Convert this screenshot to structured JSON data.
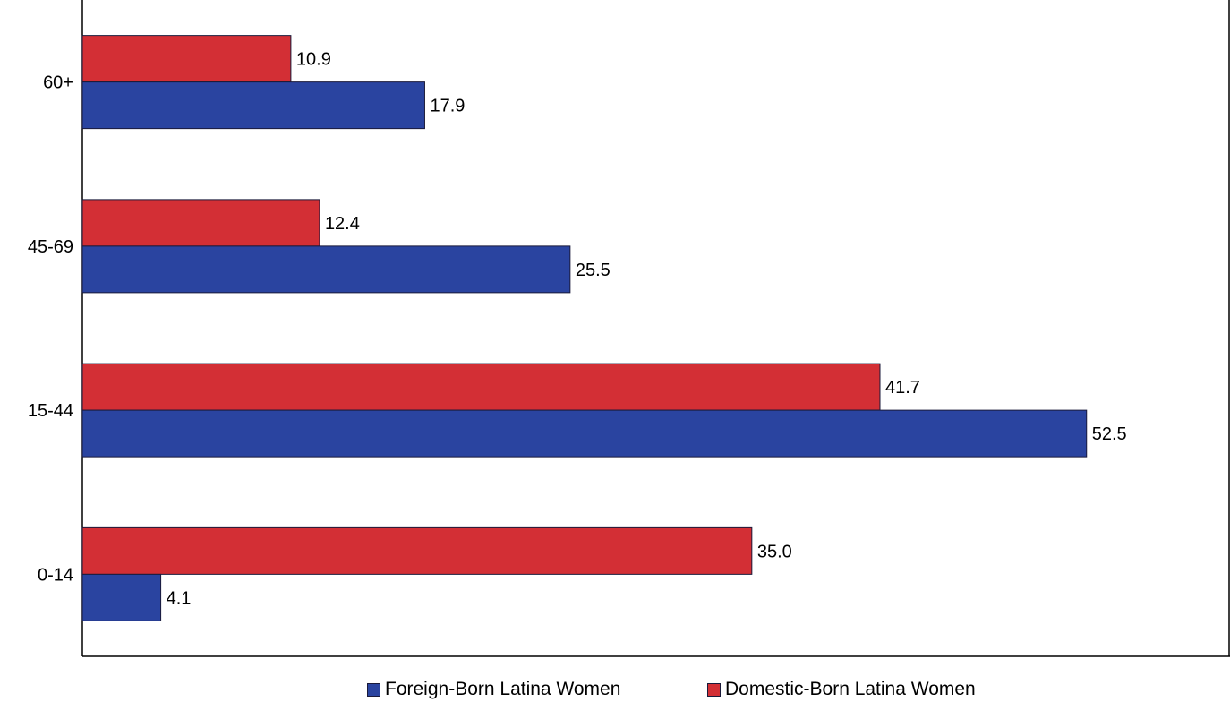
{
  "chart_data": {
    "type": "bar",
    "orientation": "horizontal",
    "categories": [
      "60+",
      "45-69",
      "15-44",
      "0-14"
    ],
    "series": [
      {
        "name": "Domestic-Born Latina Women",
        "color": "#d32f35",
        "values": [
          10.9,
          12.4,
          41.7,
          35.0
        ],
        "labels": [
          "10.9",
          "12.4",
          "41.7",
          "35.0"
        ]
      },
      {
        "name": "Foreign-Born Latina Women",
        "color": "#2a44a0",
        "values": [
          17.9,
          25.5,
          52.5,
          4.1
        ],
        "labels": [
          "17.9",
          "25.5",
          "52.5",
          "4.1"
        ]
      }
    ],
    "xlim": [
      0,
      60
    ],
    "grid": false,
    "legend_position": "bottom"
  },
  "legend": {
    "items": [
      {
        "label": "Foreign-Born Latina Women",
        "color": "#2a44a0"
      },
      {
        "label": "Domestic-Born Latina Women",
        "color": "#d32f35"
      }
    ]
  }
}
